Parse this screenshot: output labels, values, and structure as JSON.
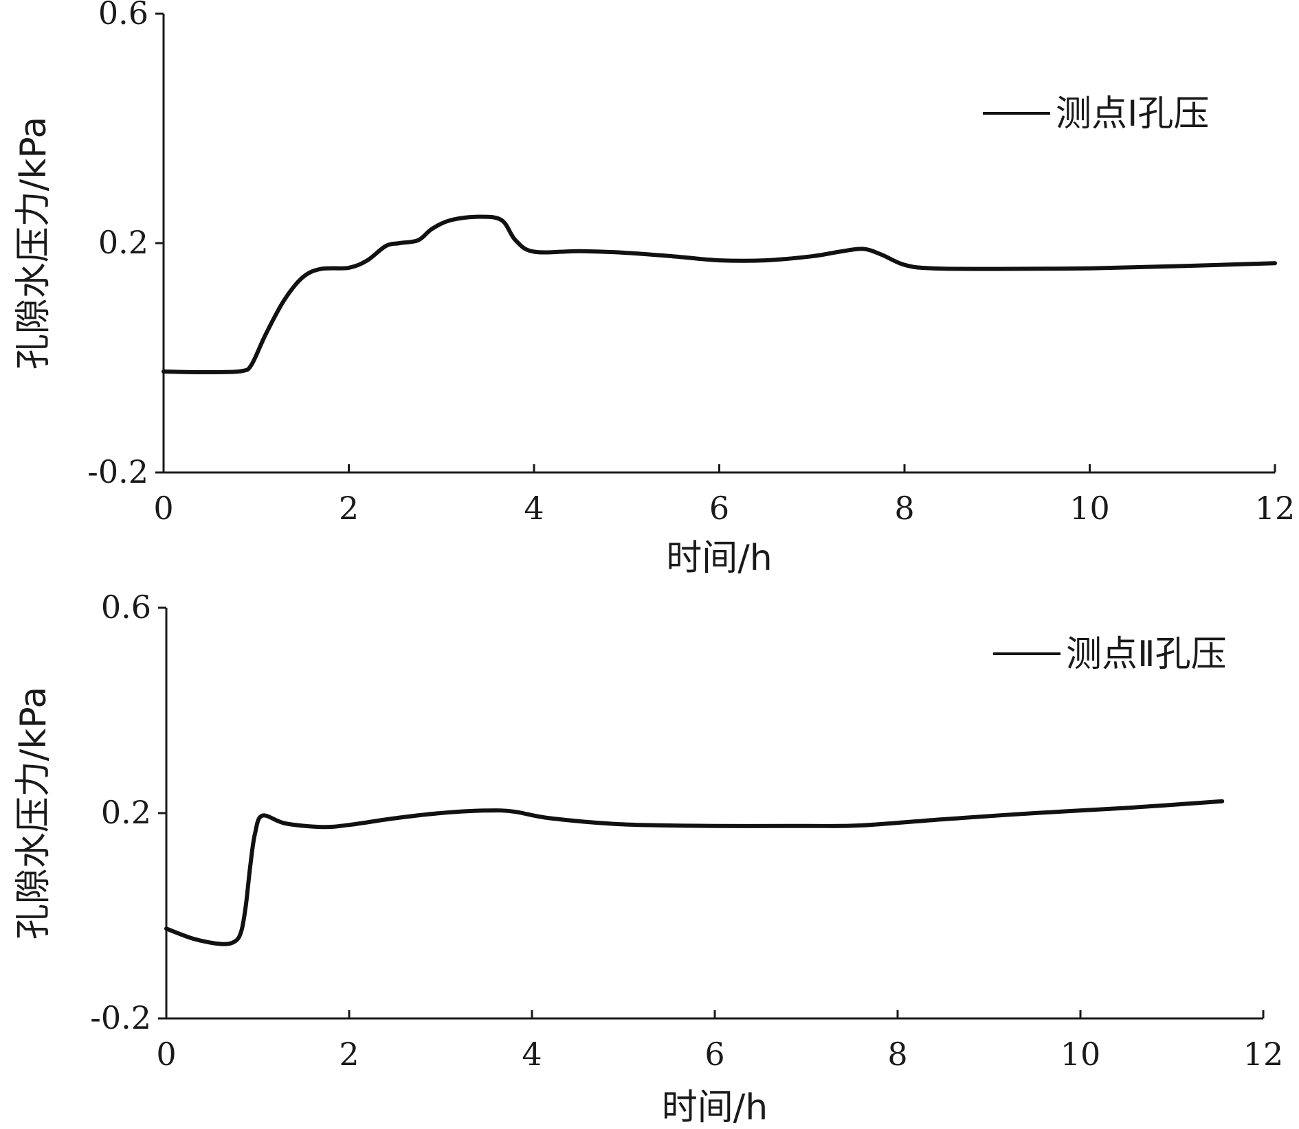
{
  "chart_data": [
    {
      "type": "line",
      "title": "",
      "xlabel": "时间/h",
      "ylabel": "孔隙水压力/kPa",
      "xlim": [
        0,
        12
      ],
      "ylim": [
        -0.2,
        0.6
      ],
      "xticks": [
        0,
        2,
        4,
        6,
        8,
        10,
        12
      ],
      "xtick_labels": [
        "0",
        "2",
        "4",
        "6",
        "8",
        "10",
        "12"
      ],
      "yticks": [
        -0.2,
        0.2,
        0.6
      ],
      "ytick_labels": [
        "-0.2",
        "0.2",
        "0.6"
      ],
      "grid": false,
      "legend_position": "top-right",
      "series": [
        {
          "name": "测点Ⅰ孔压",
          "color": "#111111",
          "x": [
            0,
            0.3,
            0.6,
            0.85,
            0.95,
            1.1,
            1.3,
            1.5,
            1.7,
            2.0,
            2.2,
            2.4,
            2.55,
            2.75,
            2.9,
            3.1,
            3.4,
            3.65,
            3.8,
            4.0,
            4.5,
            5.0,
            5.5,
            6.0,
            6.5,
            7.0,
            7.3,
            7.55,
            7.75,
            8.0,
            8.3,
            9.0,
            10.0,
            11.0,
            12.0
          ],
          "y": [
            -0.024,
            -0.025,
            -0.025,
            -0.023,
            -0.012,
            0.04,
            0.1,
            0.14,
            0.155,
            0.157,
            0.17,
            0.195,
            0.2,
            0.205,
            0.225,
            0.24,
            0.246,
            0.24,
            0.205,
            0.185,
            0.186,
            0.183,
            0.177,
            0.17,
            0.17,
            0.177,
            0.185,
            0.19,
            0.18,
            0.162,
            0.156,
            0.155,
            0.156,
            0.16,
            0.165
          ]
        }
      ]
    },
    {
      "type": "line",
      "title": "",
      "xlabel": "时间/h",
      "ylabel": "孔隙水压力/kPa",
      "xlim": [
        0,
        12
      ],
      "ylim": [
        -0.2,
        0.6
      ],
      "xticks": [
        0,
        2,
        4,
        6,
        8,
        10,
        12
      ],
      "xtick_labels": [
        "0",
        "2",
        "4",
        "6",
        "8",
        "10",
        "12"
      ],
      "yticks": [
        -0.2,
        0.2,
        0.6
      ],
      "ytick_labels": [
        "-0.2",
        "0.2",
        "0.6"
      ],
      "grid": false,
      "legend_position": "top-right",
      "series": [
        {
          "name": "测点Ⅱ孔压",
          "color": "#111111",
          "x": [
            0,
            0.3,
            0.6,
            0.75,
            0.82,
            0.87,
            0.92,
            0.97,
            1.05,
            1.3,
            1.7,
            2.0,
            2.5,
            3.0,
            3.5,
            3.8,
            4.2,
            5.0,
            6.0,
            7.0,
            7.6,
            8.5,
            9.5,
            10.5,
            11.55
          ],
          "y": [
            -0.025,
            -0.045,
            -0.055,
            -0.05,
            -0.03,
            0.02,
            0.1,
            0.16,
            0.195,
            0.18,
            0.173,
            0.177,
            0.19,
            0.2,
            0.205,
            0.203,
            0.19,
            0.178,
            0.175,
            0.175,
            0.176,
            0.188,
            0.2,
            0.21,
            0.223
          ]
        }
      ]
    }
  ]
}
